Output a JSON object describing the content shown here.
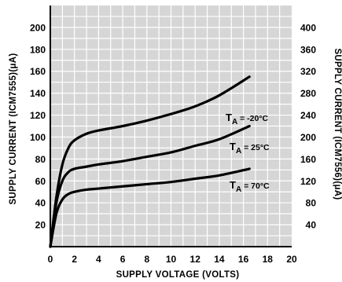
{
  "chart_data": {
    "type": "line",
    "title": "",
    "xlabel": "SUPPLY VOLTAGE (VOLTS)",
    "ylabel_left": "SUPPLY CURRENT (ICM7555)(μA)",
    "ylabel_right": "SUPPLY CURRENT (ICM7556)(μA)",
    "xlim": [
      0,
      20
    ],
    "ylim_left": [
      0,
      220
    ],
    "ylim_right": [
      0,
      440
    ],
    "x_ticks": [
      "0",
      "2",
      "4",
      "6",
      "8",
      "10",
      "12",
      "14",
      "16",
      "18",
      "20"
    ],
    "y_ticks_left": [
      "20",
      "40",
      "60",
      "80",
      "100",
      "120",
      "140",
      "160",
      "180",
      "200"
    ],
    "y_ticks_right": [
      "40",
      "80",
      "120",
      "160",
      "200",
      "240",
      "280",
      "320",
      "360",
      "400"
    ],
    "grid": true,
    "series": [
      {
        "name": "TA = -20°C",
        "x": [
          0,
          0.5,
          1,
          1.5,
          2,
          3,
          4,
          6,
          8,
          10,
          12,
          14,
          16.5
        ],
        "y": [
          0,
          45,
          75,
          90,
          97,
          103,
          106,
          110,
          115,
          121,
          128,
          138,
          155
        ]
      },
      {
        "name": "TA = 25°C",
        "x": [
          0,
          0.5,
          1,
          1.5,
          2,
          3,
          4,
          6,
          8,
          10,
          12,
          14,
          16.5
        ],
        "y": [
          0,
          40,
          60,
          68,
          71,
          73,
          75,
          78,
          82,
          86,
          92,
          98,
          110
        ]
      },
      {
        "name": "TA = 70°C",
        "x": [
          0,
          0.5,
          1,
          1.5,
          2,
          3,
          4,
          6,
          8,
          10,
          12,
          14,
          16.5
        ],
        "y": [
          0,
          30,
          43,
          48,
          50,
          52,
          53,
          55,
          57,
          59,
          62,
          65,
          71
        ]
      }
    ],
    "curve_labels": [
      {
        "prefix": "T",
        "sub": "A",
        "rest": " = -20°C"
      },
      {
        "prefix": "T",
        "sub": "A",
        "rest": " = 25°C"
      },
      {
        "prefix": "T",
        "sub": "A",
        "rest": " = 70°C"
      }
    ]
  }
}
